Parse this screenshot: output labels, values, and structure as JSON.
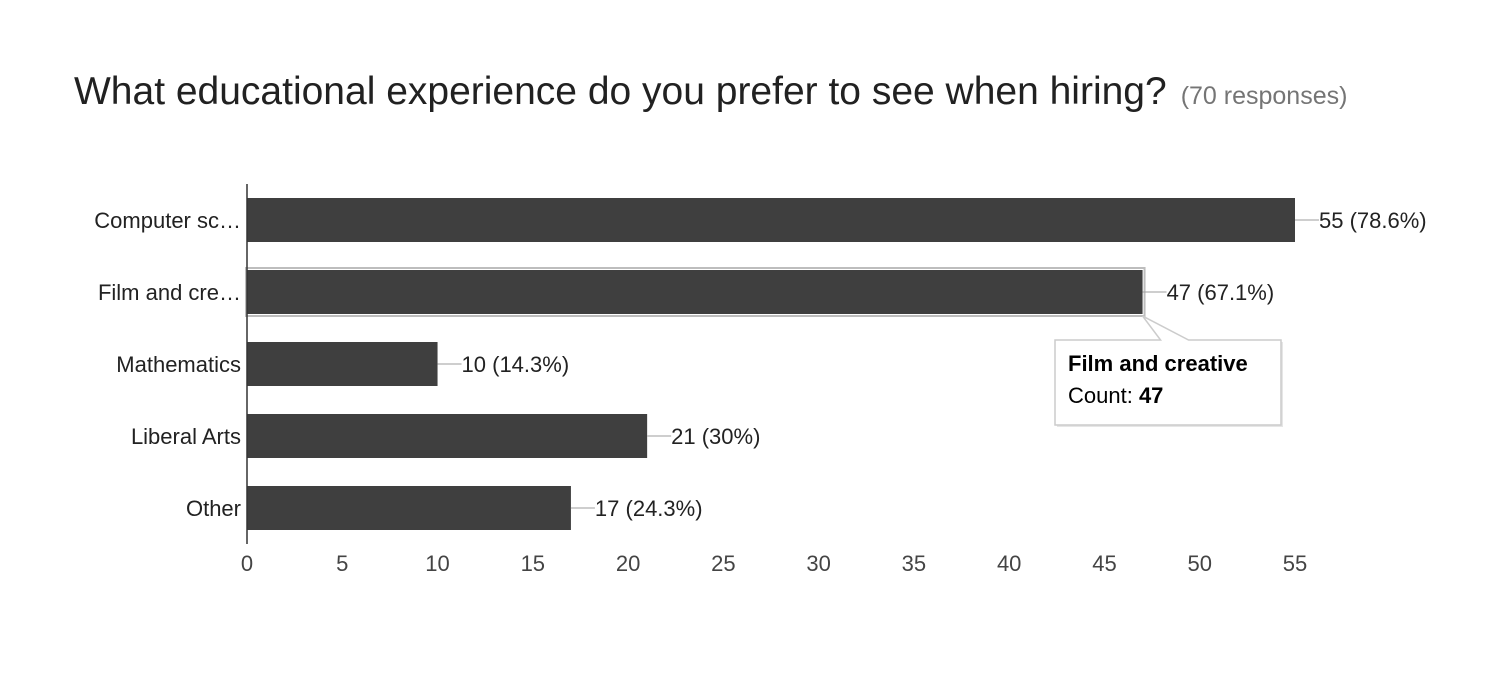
{
  "header": {
    "question": "What educational experience do you prefer to see when hiring?",
    "responses": "(70 responses)"
  },
  "chart_data": {
    "type": "bar",
    "orientation": "horizontal",
    "categories": [
      "Computer sc…",
      "Film and cre…",
      "Mathematics",
      "Liberal Arts",
      "Other"
    ],
    "values": [
      55,
      47,
      10,
      21,
      17
    ],
    "value_labels": [
      "55 (78.6%)",
      "47 (67.1%)",
      "10 (14.3%)",
      "21 (30%)",
      "17 (24.3%)"
    ],
    "xlim": [
      0,
      55
    ],
    "xticks": [
      0,
      5,
      10,
      15,
      20,
      25,
      30,
      35,
      40,
      45,
      50,
      55
    ],
    "grid": false,
    "bar_color": "#3f3f3f",
    "highlighted_index": 1,
    "tooltip": {
      "title": "Film and creative",
      "count_label": "Count: ",
      "count_value": "47"
    }
  }
}
